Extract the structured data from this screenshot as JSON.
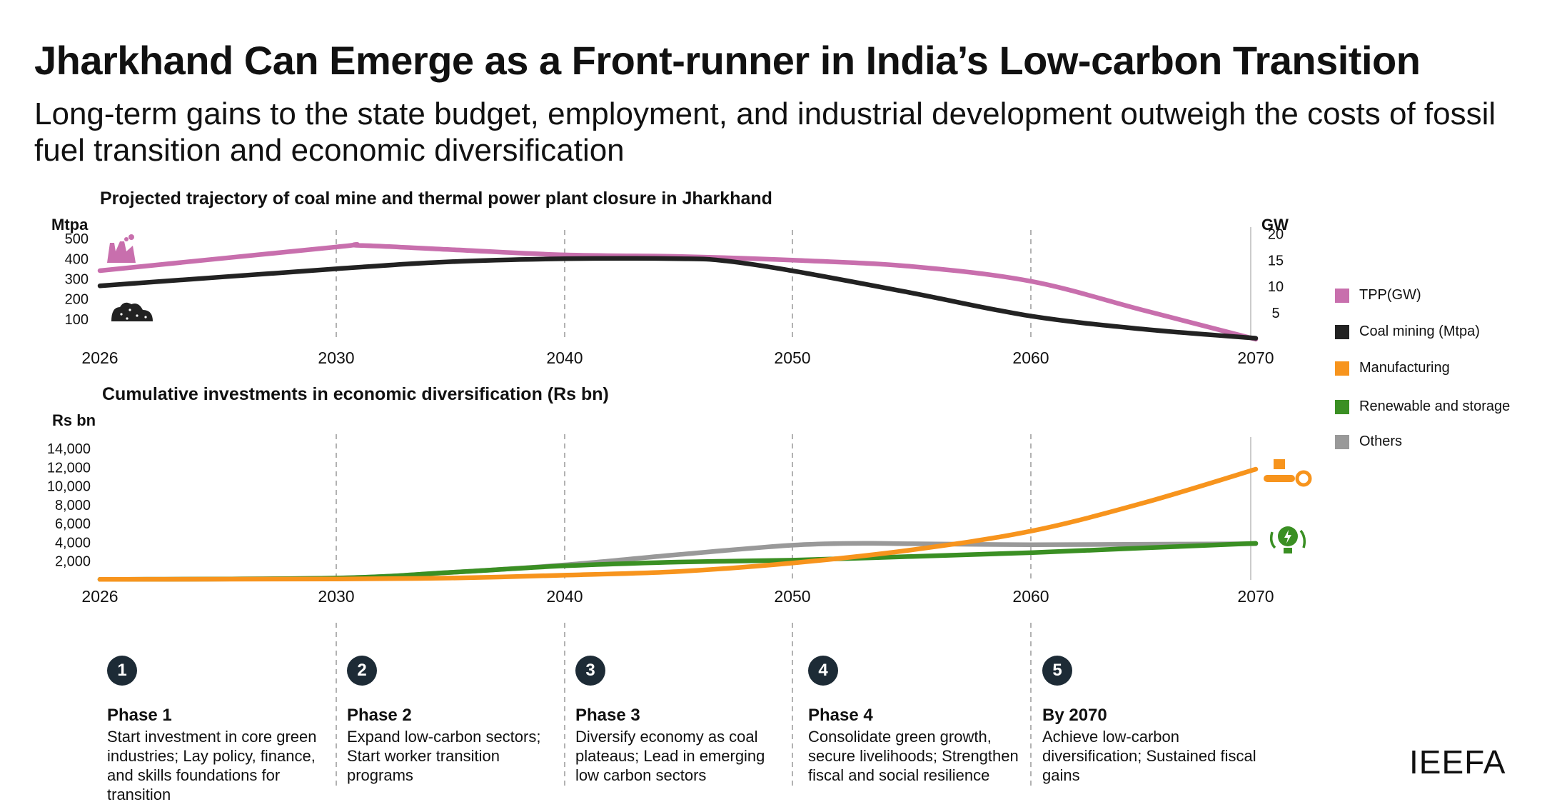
{
  "header": {
    "title": "Jharkhand Can Emerge as a Front-runner in India’s Low-carbon Transition",
    "subtitle": "Long-term gains to the state budget, employment, and industrial development outweigh the costs of fossil fuel transition and economic diversification"
  },
  "chart_data": [
    {
      "type": "line",
      "title": "Projected trajectory of coal mine and thermal power plant closure in Jharkhand",
      "y_left_label": "Mtpa",
      "y_right_label": "GW",
      "x_ticks": [
        "2026",
        "2030",
        "2040",
        "2050",
        "2060",
        "2070"
      ],
      "y_left_ticks": [
        "100",
        "200",
        "300",
        "400",
        "500"
      ],
      "y_right_ticks": [
        "5",
        "10",
        "15",
        "20"
      ],
      "ylim_left": [
        0,
        550
      ],
      "ylim_right": [
        0,
        21
      ],
      "grid": "dashed vertical lines at 2030, 2040, 2050, 2060",
      "icons": [
        "power-plant-icon",
        "coal-pile-icon"
      ],
      "series": [
        {
          "name": "TPP(GW)",
          "axis": "right",
          "color": "#c86fad",
          "x": [
            2026,
            2030,
            2031,
            2035,
            2040,
            2045,
            2050,
            2055,
            2060,
            2065,
            2070
          ],
          "y": [
            13,
            17.5,
            17.8,
            17,
            16,
            15.7,
            15,
            13.8,
            11,
            5.5,
            0
          ]
        },
        {
          "name": "Coal mining (Mtpa)",
          "axis": "left",
          "color": "#222222",
          "x": [
            2026,
            2030,
            2035,
            2040,
            2045,
            2047,
            2050,
            2055,
            2060,
            2065,
            2070
          ],
          "y": [
            265,
            350,
            385,
            400,
            400,
            390,
            340,
            230,
            115,
            50,
            5
          ]
        }
      ]
    },
    {
      "type": "line",
      "title": "Cumulative investments in economic diversification (Rs bn)",
      "ylabel": "Rs bn",
      "x_ticks": [
        "2026",
        "2030",
        "2040",
        "2050",
        "2060",
        "2070"
      ],
      "y_ticks": [
        "2,000",
        "4,000",
        "6,000",
        "8,000",
        "10,000",
        "12,000",
        "14,000"
      ],
      "ylim": [
        0,
        15000
      ],
      "grid": "dashed vertical lines at 2030, 2040, 2050, 2060",
      "icons": [
        "manufacturing-conveyor-icon",
        "renewable-bulb-icon"
      ],
      "series": [
        {
          "name": "Manufacturing",
          "color": "#f7941d",
          "x": [
            2026,
            2030,
            2035,
            2040,
            2045,
            2050,
            2055,
            2060,
            2065,
            2070
          ],
          "y": [
            50,
            100,
            200,
            500,
            900,
            1800,
            3200,
            5200,
            8200,
            11800
          ]
        },
        {
          "name": "Renewable and storage",
          "color": "#3a8f23",
          "x": [
            2026,
            2030,
            2035,
            2040,
            2045,
            2050,
            2055,
            2060,
            2065,
            2070
          ],
          "y": [
            50,
            200,
            800,
            1500,
            1900,
            2100,
            2500,
            2900,
            3400,
            3900
          ]
        },
        {
          "name": "Others",
          "color": "#999999",
          "x": [
            2026,
            2030,
            2035,
            2040,
            2045,
            2050,
            2053,
            2055,
            2060,
            2065,
            2070
          ],
          "y": [
            50,
            200,
            800,
            1600,
            2700,
            3700,
            3900,
            3850,
            3750,
            3800,
            3850
          ]
        }
      ]
    }
  ],
  "legend": [
    {
      "label": "TPP(GW)",
      "color": "#c86fad"
    },
    {
      "label": "Coal mining (Mtpa)",
      "color": "#222222"
    },
    {
      "label": "Manufacturing",
      "color": "#f7941d"
    },
    {
      "label": "Renewable and storage",
      "color": "#3a8f23"
    },
    {
      "label": "Others",
      "color": "#999999"
    }
  ],
  "phases": [
    {
      "num": "1",
      "title": "Phase 1",
      "desc": "Start investment in core green industries; Lay policy, finance, and skills foundations for transition"
    },
    {
      "num": "2",
      "title": "Phase 2",
      "desc": "Expand low-carbon sectors; Start worker transition programs"
    },
    {
      "num": "3",
      "title": "Phase 3",
      "desc": "Diversify economy as coal plateaus; Lead in emerging low carbon sectors"
    },
    {
      "num": "4",
      "title": "Phase 4",
      "desc": "Consolidate green growth, secure livelihoods; Strengthen fiscal and social resilience"
    },
    {
      "num": "5",
      "title": "By 2070",
      "desc": "Achieve low-carbon diversification; Sustained fiscal gains"
    }
  ],
  "brand": "IEEFA"
}
